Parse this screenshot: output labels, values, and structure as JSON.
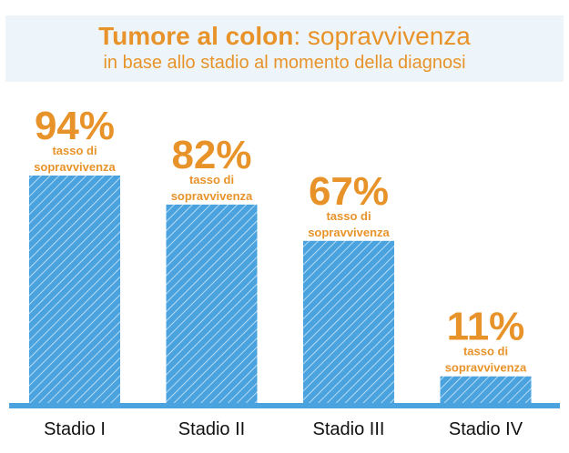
{
  "header": {
    "title_bold": "Tumore al colon",
    "title_rest": ": sopravvivenza",
    "subtitle": "in base allo stadio al momento della diagnosi"
  },
  "colors": {
    "bar": "#4aa3df",
    "bar_hatch": "#ffffff",
    "baseline": "#4aa3df",
    "label": "#e8932a",
    "category_text": "#111111",
    "header_bg": "#eef5fa"
  },
  "chart_data": {
    "type": "bar",
    "title": "Tumore al colon: sopravvivenza",
    "subtitle": "in base allo stadio al momento della diagnosi",
    "categories": [
      "Stadio I",
      "Stadio II",
      "Stadio III",
      "Stadio IV"
    ],
    "values": [
      94,
      82,
      67,
      11
    ],
    "value_labels": [
      "94%",
      "82%",
      "67%",
      "11%"
    ],
    "bar_sublabel_line1": "tasso di",
    "bar_sublabel_line2": "sopravvivenza",
    "ylim": [
      0,
      100
    ],
    "grid": false,
    "legend": "none"
  }
}
